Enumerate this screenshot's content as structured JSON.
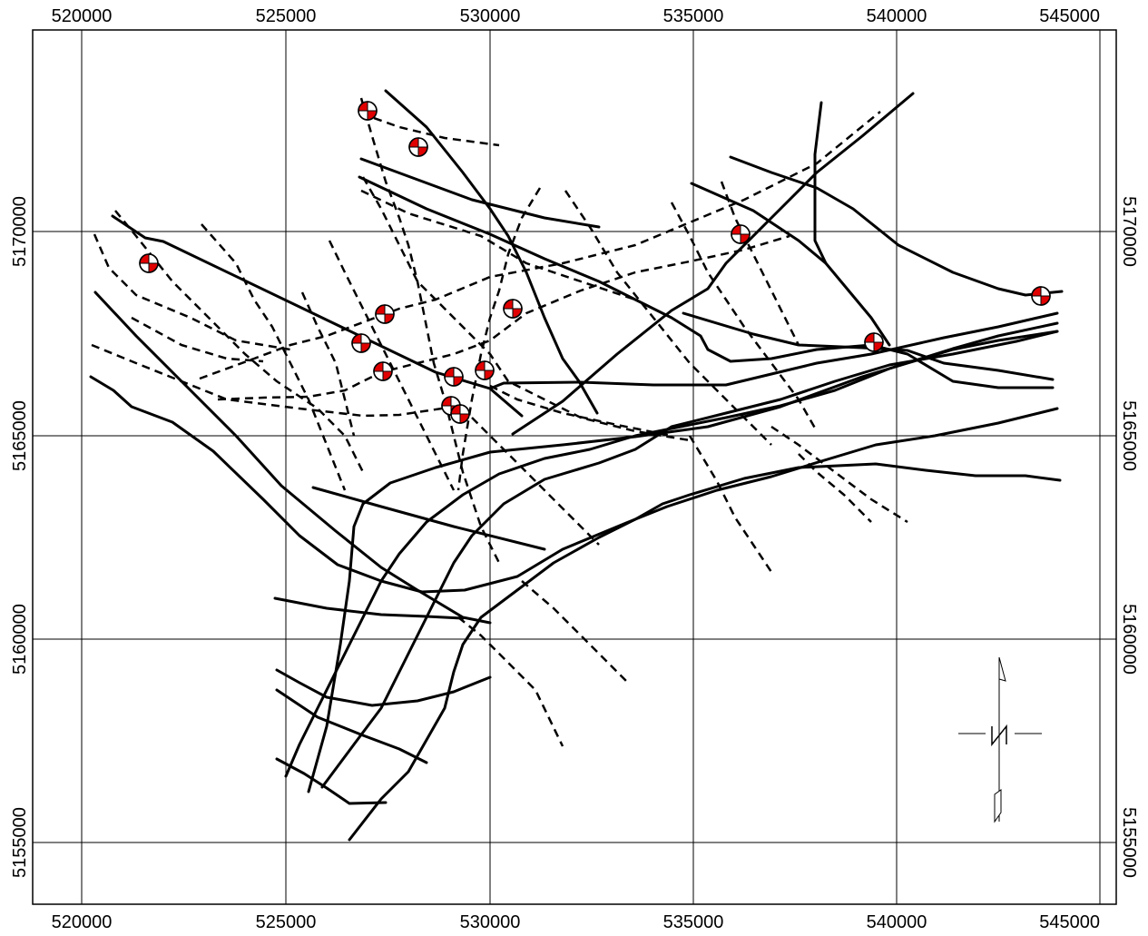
{
  "map": {
    "x_ticks": [
      "520000",
      "525000",
      "530000",
      "535000",
      "540000",
      "545000"
    ],
    "y_ticks": [
      "5155000",
      "5160000",
      "5165000",
      "5170000"
    ],
    "colors": {
      "line": "#000000",
      "focal_mechanism_red": "#e00000",
      "background": "#ffffff"
    },
    "north_arrow_label": "N",
    "focal_mechanisms_count": 15
  }
}
